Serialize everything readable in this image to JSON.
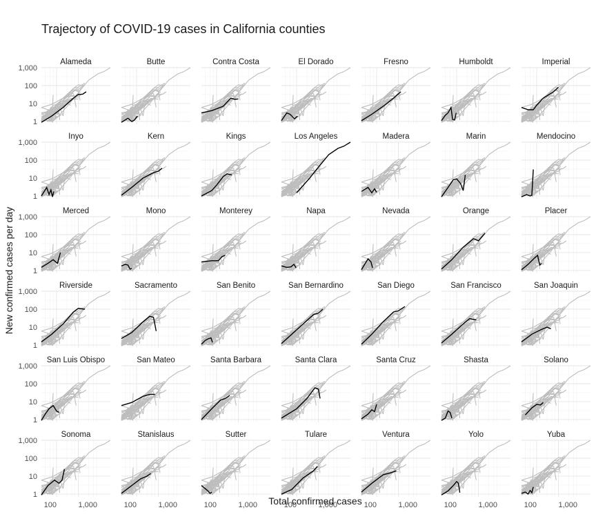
{
  "chart_data": {
    "type": "line",
    "title": "Trajectory of COVID-19 cases in California counties",
    "xlabel": "Total confirmed cases",
    "ylabel": "New confirmed cases per day",
    "x_scale": "log10",
    "y_scale": "log10",
    "x_tick_labels": [
      "100",
      "1,000"
    ],
    "y_tick_labels": [
      "1",
      "10",
      "100",
      "1,000"
    ],
    "xlim": [
      20,
      30000
    ],
    "ylim": [
      0.7,
      1000
    ],
    "grid": true,
    "layout": "facet grid, 7 columns by 6 rows; every panel shows all counties in grey with the named county highlighted in black",
    "panels": [
      {
        "name": "Alameda",
        "x": [
          20,
          60,
          200,
          600,
          1000,
          1600,
          2300
        ],
        "y": [
          0.9,
          2,
          6,
          20,
          32,
          33,
          45
        ]
      },
      {
        "name": "Butte",
        "x": [
          20,
          40,
          60,
          80,
          110
        ],
        "y": [
          0.9,
          1.5,
          1.0,
          1.2,
          2
        ]
      },
      {
        "name": "Contra Costa",
        "x": [
          20,
          60,
          200,
          450,
          700,
          1000
        ],
        "y": [
          3,
          4,
          7,
          20,
          17,
          18
        ]
      },
      {
        "name": "El Dorado",
        "x": [
          20,
          35,
          50,
          80,
          110
        ],
        "y": [
          1.1,
          3,
          2.5,
          1.4,
          2
        ]
      },
      {
        "name": "Fresno",
        "x": [
          20,
          60,
          200,
          600,
          1300
        ],
        "y": [
          1.1,
          2.5,
          7,
          20,
          45
        ]
      },
      {
        "name": "Humboldt",
        "x": [
          20,
          30,
          40,
          55,
          65,
          80,
          95
        ],
        "y": [
          1.1,
          2.2,
          3,
          6,
          1.3,
          1.2,
          3
        ]
      },
      {
        "name": "Imperial",
        "x": [
          20,
          40,
          70,
          100,
          200,
          600,
          1000
        ],
        "y": [
          6,
          4.5,
          4.5,
          8,
          20,
          45,
          80
        ]
      },
      {
        "name": "Inyo",
        "x": [
          20,
          35,
          45,
          55,
          65,
          75
        ],
        "y": [
          1,
          3,
          1.2,
          2.2,
          0.9,
          1.8
        ]
      },
      {
        "name": "Kern",
        "x": [
          20,
          60,
          200,
          600,
          1000,
          1500
        ],
        "y": [
          1.1,
          3,
          10,
          20,
          24,
          35
        ]
      },
      {
        "name": "Kings",
        "x": [
          20,
          60,
          100,
          200,
          300,
          500
        ],
        "y": [
          1,
          2,
          4,
          12,
          17,
          15
        ]
      },
      {
        "name": "Los Angeles",
        "x": [
          100,
          400,
          1000,
          3000,
          8000,
          15000,
          30000
        ],
        "y": [
          1.5,
          10,
          40,
          200,
          450,
          600,
          1000
        ]
      },
      {
        "name": "Madera",
        "x": [
          20,
          40,
          60,
          80,
          100
        ],
        "y": [
          1.8,
          3,
          1.5,
          2.5,
          1.6
        ]
      },
      {
        "name": "Marin",
        "x": [
          20,
          40,
          70,
          100,
          150,
          200,
          250
        ],
        "y": [
          0.9,
          3,
          8,
          9,
          5,
          2,
          15
        ]
      },
      {
        "name": "Mendocino",
        "x": [
          20,
          35,
          50,
          60,
          70
        ],
        "y": [
          0.9,
          1.2,
          1,
          1.1,
          30
        ]
      },
      {
        "name": "Merced",
        "x": [
          20,
          40,
          70,
          110,
          150
        ],
        "y": [
          1.5,
          2.5,
          4,
          2.5,
          10
        ]
      },
      {
        "name": "Mono",
        "x": [
          20,
          30,
          40,
          50,
          60
        ],
        "y": [
          1.8,
          2.2,
          2,
          1.2,
          1.3
        ]
      },
      {
        "name": "Monterey",
        "x": [
          20,
          60,
          120,
          180,
          250
        ],
        "y": [
          3,
          3.5,
          3.5,
          6,
          7
        ]
      },
      {
        "name": "Napa",
        "x": [
          20,
          35,
          55,
          75,
          95
        ],
        "y": [
          1.8,
          1.5,
          1.6,
          2.2,
          1.4
        ]
      },
      {
        "name": "Nevada",
        "x": [
          20,
          30,
          40,
          55,
          65
        ],
        "y": [
          1.1,
          2.5,
          4.5,
          3,
          1.4
        ]
      },
      {
        "name": "Orange",
        "x": [
          20,
          60,
          200,
          600,
          1000,
          2000
        ],
        "y": [
          1.2,
          4,
          20,
          60,
          45,
          120
        ]
      },
      {
        "name": "Placer",
        "x": [
          20,
          40,
          80,
          110,
          140,
          170
        ],
        "y": [
          1.1,
          2.2,
          5,
          7,
          2,
          2.5
        ]
      },
      {
        "name": "Riverside",
        "x": [
          20,
          60,
          200,
          600,
          1000,
          2000
        ],
        "y": [
          1.5,
          4,
          15,
          70,
          110,
          100
        ]
      },
      {
        "name": "Sacramento",
        "x": [
          20,
          60,
          200,
          400,
          600,
          800
        ],
        "y": [
          2.3,
          5,
          20,
          40,
          35,
          6
        ]
      },
      {
        "name": "San Benito",
        "x": [
          20,
          30,
          40,
          55,
          65
        ],
        "y": [
          1.1,
          1.8,
          2.2,
          2.5,
          1.4
        ]
      },
      {
        "name": "San Bernardino",
        "x": [
          20,
          60,
          200,
          600,
          1000,
          1600
        ],
        "y": [
          1.2,
          4,
          15,
          50,
          60,
          100
        ]
      },
      {
        "name": "San Diego",
        "x": [
          20,
          60,
          200,
          600,
          1000,
          2000
        ],
        "y": [
          1.1,
          4,
          20,
          70,
          80,
          140
        ]
      },
      {
        "name": "San Francisco",
        "x": [
          20,
          60,
          200,
          400,
          800
        ],
        "y": [
          1.3,
          4,
          15,
          30,
          25
        ]
      },
      {
        "name": "San Joaquin",
        "x": [
          20,
          60,
          150,
          300,
          450
        ],
        "y": [
          1.5,
          4,
          7,
          10,
          8
        ]
      },
      {
        "name": "San Luis Obispo",
        "x": [
          20,
          30,
          45,
          70,
          100,
          130
        ],
        "y": [
          0.9,
          2,
          4,
          6,
          3,
          2.5
        ]
      },
      {
        "name": "San Mateo",
        "x": [
          20,
          60,
          200,
          400,
          700
        ],
        "y": [
          6,
          9,
          20,
          25,
          25
        ]
      },
      {
        "name": "Santa Barbara",
        "x": [
          20,
          60,
          150,
          250,
          400
        ],
        "y": [
          1,
          4,
          12,
          15,
          22
        ]
      },
      {
        "name": "Santa Clara",
        "x": [
          20,
          100,
          300,
          700,
          1000,
          1200
        ],
        "y": [
          1.2,
          4,
          15,
          60,
          50,
          15
        ]
      },
      {
        "name": "Santa Cruz",
        "x": [
          20,
          40,
          60,
          80,
          100
        ],
        "y": [
          1.1,
          2,
          3.5,
          2.8,
          7
        ]
      },
      {
        "name": "Shasta",
        "x": [
          20,
          30,
          40,
          50,
          60
        ],
        "y": [
          0.9,
          1.2,
          3,
          2.5,
          1.2
        ]
      },
      {
        "name": "Solano",
        "x": [
          30,
          60,
          100,
          150,
          200
        ],
        "y": [
          1.8,
          4.5,
          7,
          6.5,
          9
        ]
      },
      {
        "name": "Sonoma",
        "x": [
          20,
          40,
          80,
          130,
          180,
          230
        ],
        "y": [
          0.9,
          3,
          6,
          4,
          6,
          25
        ]
      },
      {
        "name": "Stanislaus",
        "x": [
          20,
          60,
          150,
          300,
          450
        ],
        "y": [
          1.1,
          3,
          7,
          10,
          14
        ]
      },
      {
        "name": "Sutter",
        "x": [
          20,
          30,
          40,
          50,
          60
        ],
        "y": [
          3,
          2,
          1.5,
          1.1,
          1.3
        ]
      },
      {
        "name": "Tulare",
        "x": [
          20,
          60,
          200,
          600,
          900
        ],
        "y": [
          1,
          1.8,
          8,
          20,
          35
        ]
      },
      {
        "name": "Ventura",
        "x": [
          20,
          60,
          200,
          500,
          800
        ],
        "y": [
          1.3,
          4,
          12,
          16,
          20
        ]
      },
      {
        "name": "Yolo",
        "x": [
          20,
          40,
          70,
          100,
          120,
          140
        ],
        "y": [
          0.9,
          1.5,
          3,
          5,
          4,
          1.2
        ]
      },
      {
        "name": "Yuba",
        "x": [
          20,
          30,
          40,
          50,
          60,
          70
        ],
        "y": [
          1.1,
          1.3,
          1.0,
          1.6,
          1.2,
          2.5
        ]
      }
    ]
  }
}
